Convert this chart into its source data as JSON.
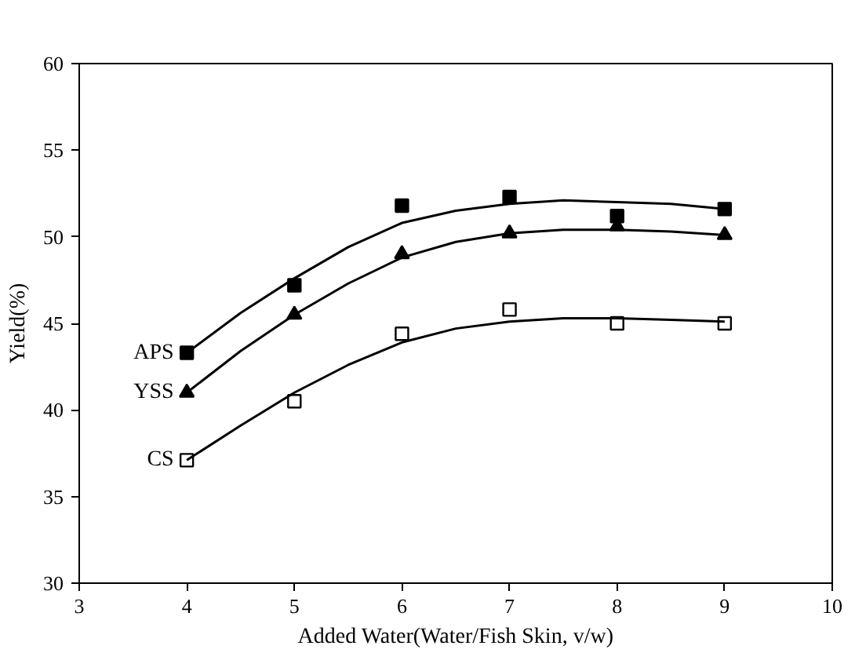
{
  "chart_data": {
    "type": "scatter",
    "xlabel": "Added Water(Water/Fish Skin, v/w)",
    "ylabel": "Yield(%)",
    "x": [
      4,
      5,
      6,
      7,
      8,
      9
    ],
    "series": [
      {
        "name": "APS",
        "color": "#000000",
        "marker": "square",
        "values": [
          43.3,
          47.2,
          51.8,
          52.3,
          51.2,
          51.6
        ]
      },
      {
        "name": "YSS",
        "color": "#000000",
        "marker": "triangle",
        "values": [
          41.0,
          45.5,
          49.0,
          50.2,
          50.6,
          50.1
        ]
      },
      {
        "name": "CS",
        "color": "#ffffff",
        "marker": "square",
        "values": [
          37.1,
          40.5,
          44.4,
          45.8,
          45.0,
          45.0
        ]
      },
      {
        "type": "line",
        "color": "#000000",
        "x": [
          4,
          4.5,
          5,
          5.5,
          6,
          6.5,
          7,
          7.5,
          8,
          8.5,
          9
        ],
        "values": [
          43.3,
          45.6,
          47.6,
          49.4,
          50.8,
          51.5,
          51.9,
          52.1,
          52.0,
          51.9,
          51.6
        ]
      },
      {
        "type": "line",
        "color": "#000000",
        "x": [
          4,
          4.5,
          5,
          5.5,
          6,
          6.5,
          7,
          7.5,
          8,
          8.5,
          9
        ],
        "values": [
          41.0,
          43.4,
          45.5,
          47.3,
          48.8,
          49.7,
          50.2,
          50.4,
          50.4,
          50.3,
          50.1
        ]
      },
      {
        "type": "line",
        "color": "#000000",
        "x": [
          4,
          4.5,
          5,
          5.5,
          6,
          6.5,
          7,
          7.5,
          8,
          8.5,
          9
        ],
        "values": [
          37.1,
          39.1,
          41.0,
          42.6,
          43.9,
          44.7,
          45.1,
          45.3,
          45.3,
          45.2,
          45.1
        ]
      }
    ],
    "xlim": [
      3,
      10
    ],
    "ylim": [
      30,
      60
    ],
    "xticks": [
      3,
      4,
      5,
      6,
      7,
      8,
      9,
      10
    ],
    "yticks": [
      30,
      35,
      40,
      45,
      50,
      55,
      60
    ],
    "grid": false
  }
}
